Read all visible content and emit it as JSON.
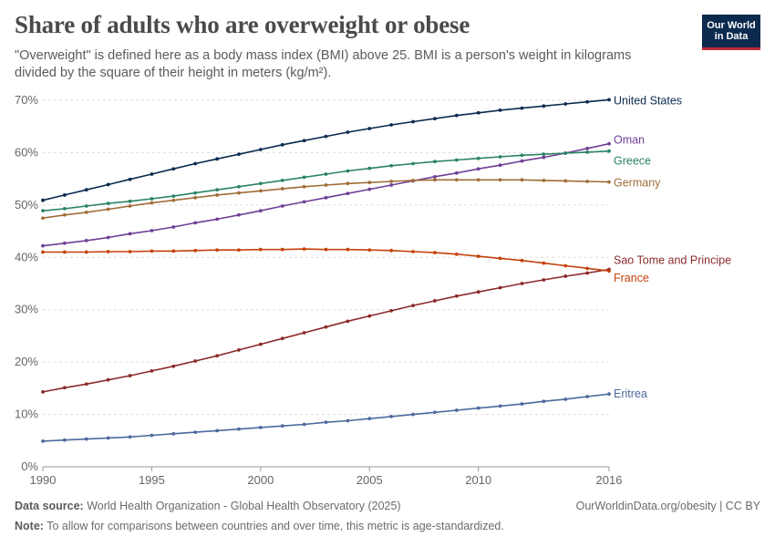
{
  "header": {
    "title": "Share of adults who are overweight or obese",
    "subtitle": "\"Overweight\" is defined here as a body mass index (BMI) above 25. BMI is a person's weight in kilograms divided by the square of their height in meters (kg/m²).",
    "logo_line1": "Our World",
    "logo_line2": "in Data"
  },
  "footer": {
    "source_label": "Data source:",
    "source_text": "World Health Organization - Global Health Observatory (2025)",
    "note_label": "Note:",
    "note_text": "To allow for comparisons between countries and over time, this metric is age-standardized.",
    "link_text": "OurWorldinData.org/obesity | CC BY"
  },
  "chart_data": {
    "type": "line",
    "title": "Share of adults who are overweight or obese",
    "xlim": [
      1990,
      2016
    ],
    "ylim": [
      0,
      70
    ],
    "x_ticks": [
      1990,
      1995,
      2000,
      2005,
      2010,
      2016
    ],
    "y_ticks": [
      0,
      10,
      20,
      30,
      40,
      50,
      60,
      70
    ],
    "y_tick_labels": [
      "0%",
      "10%",
      "20%",
      "30%",
      "40%",
      "50%",
      "60%",
      "70%"
    ],
    "grid": "horizontal dashed",
    "legend": "line-end labels on right",
    "x": [
      1990,
      1991,
      1992,
      1993,
      1994,
      1995,
      1996,
      1997,
      1998,
      1999,
      2000,
      2001,
      2002,
      2003,
      2004,
      2005,
      2006,
      2007,
      2008,
      2009,
      2010,
      2011,
      2012,
      2013,
      2014,
      2015,
      2016
    ],
    "series": [
      {
        "name": "United States",
        "color": "#0b2a4e",
        "values": [
          50.9,
          51.9,
          52.9,
          53.9,
          54.9,
          55.9,
          56.9,
          57.9,
          58.8,
          59.7,
          60.6,
          61.5,
          62.3,
          63.1,
          63.9,
          64.6,
          65.3,
          65.9,
          66.5,
          67.1,
          67.6,
          68.1,
          68.5,
          68.9,
          69.3,
          69.7,
          70.1
        ]
      },
      {
        "name": "Oman",
        "color": "#6e3f97",
        "values": [
          42.2,
          42.7,
          43.2,
          43.8,
          44.5,
          45.1,
          45.8,
          46.6,
          47.3,
          48.1,
          48.9,
          49.8,
          50.6,
          51.4,
          52.2,
          53.0,
          53.8,
          54.6,
          55.4,
          56.1,
          56.9,
          57.6,
          58.4,
          59.1,
          59.9,
          60.8,
          61.7
        ]
      },
      {
        "name": "Greece",
        "color": "#2b8465",
        "values": [
          48.9,
          49.3,
          49.8,
          50.3,
          50.7,
          51.2,
          51.7,
          52.3,
          52.9,
          53.5,
          54.1,
          54.7,
          55.3,
          55.9,
          56.5,
          57.0,
          57.5,
          57.9,
          58.3,
          58.6,
          58.9,
          59.2,
          59.5,
          59.7,
          59.9,
          60.1,
          60.3
        ]
      },
      {
        "name": "Germany",
        "color": "#a06d38",
        "values": [
          47.5,
          48.1,
          48.6,
          49.2,
          49.8,
          50.4,
          50.9,
          51.4,
          51.9,
          52.3,
          52.7,
          53.1,
          53.5,
          53.8,
          54.1,
          54.3,
          54.5,
          54.7,
          54.8,
          54.8,
          54.8,
          54.8,
          54.8,
          54.7,
          54.6,
          54.5,
          54.4
        ]
      },
      {
        "name": "Sao Tome and Principe",
        "color": "#8c2a2a",
        "values": [
          14.3,
          15.1,
          15.8,
          16.6,
          17.4,
          18.3,
          19.2,
          20.2,
          21.2,
          22.3,
          23.4,
          24.5,
          25.6,
          26.7,
          27.8,
          28.8,
          29.8,
          30.8,
          31.7,
          32.6,
          33.4,
          34.2,
          35.0,
          35.7,
          36.4,
          37.0,
          37.7
        ]
      },
      {
        "name": "France",
        "color": "#c4410b",
        "values": [
          41.0,
          41.0,
          41.0,
          41.1,
          41.1,
          41.2,
          41.2,
          41.3,
          41.4,
          41.4,
          41.5,
          41.5,
          41.6,
          41.5,
          41.5,
          41.4,
          41.3,
          41.1,
          40.9,
          40.6,
          40.2,
          39.8,
          39.4,
          38.9,
          38.4,
          37.9,
          37.4
        ]
      },
      {
        "name": "Eritrea",
        "color": "#4c6a9c",
        "values": [
          4.9,
          5.1,
          5.3,
          5.5,
          5.7,
          6.0,
          6.3,
          6.6,
          6.9,
          7.2,
          7.5,
          7.8,
          8.1,
          8.5,
          8.8,
          9.2,
          9.6,
          10.0,
          10.4,
          10.8,
          11.2,
          11.6,
          12.0,
          12.5,
          12.9,
          13.4,
          13.9
        ]
      }
    ]
  }
}
